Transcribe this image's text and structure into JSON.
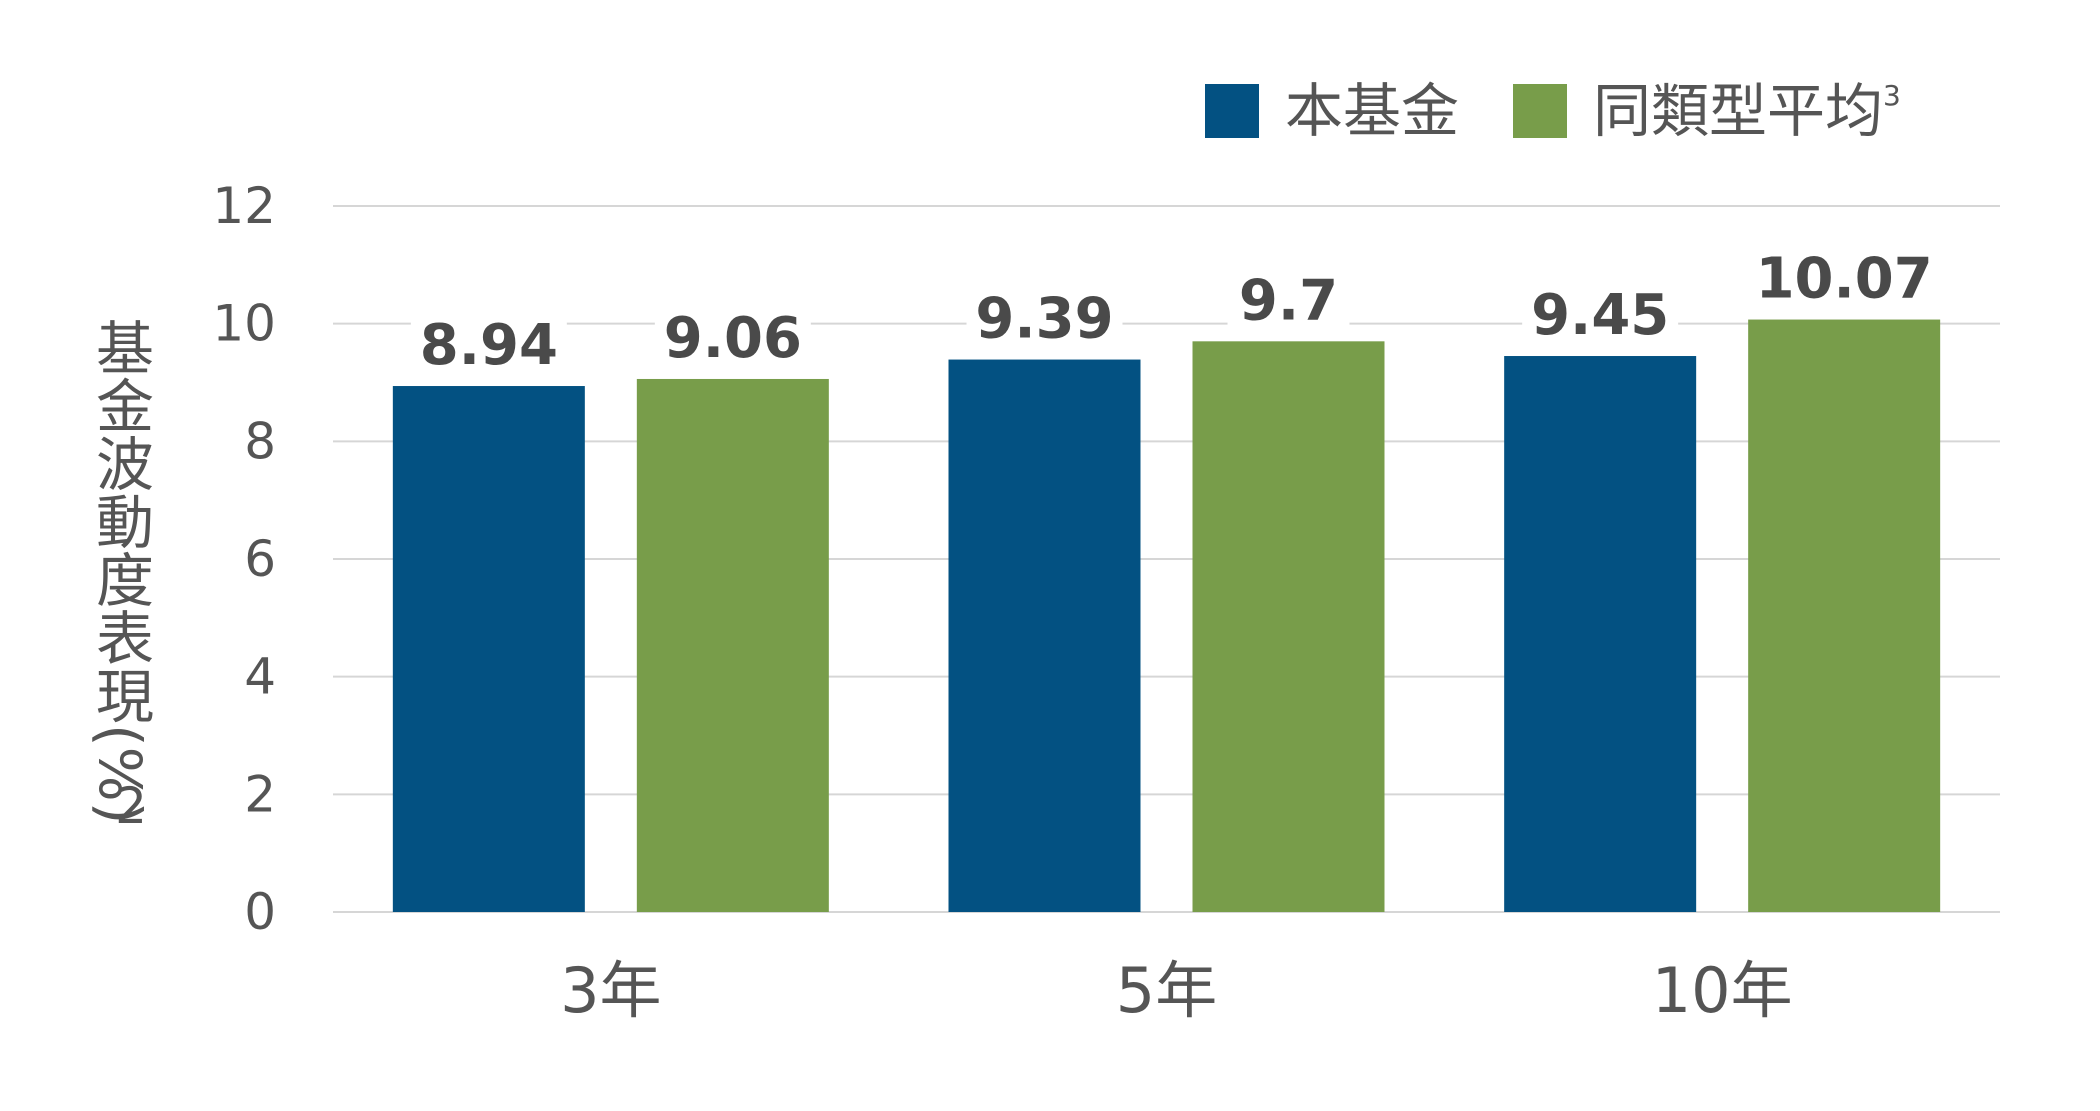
{
  "chart_data": {
    "type": "bar",
    "categories": [
      "3年",
      "5年",
      "10年"
    ],
    "series": [
      {
        "name": "本基金",
        "values": [
          8.94,
          9.39,
          9.45
        ],
        "value_labels": [
          "8.94",
          "9.39",
          "9.45"
        ],
        "color": "#035182"
      },
      {
        "name": "同類型平均",
        "values": [
          9.06,
          9.7,
          10.07
        ],
        "value_labels": [
          "9.06",
          "9.7",
          "10.07"
        ],
        "color": "#789d4a"
      }
    ],
    "legend": {
      "items": [
        {
          "label": "本基金",
          "superscript": ""
        },
        {
          "label": "同類型平均",
          "superscript": "3"
        }
      ],
      "placement": "top-right"
    },
    "ylabel": "基金波動度表現(%)",
    "ylabel_superscript": "2",
    "xlabel": "",
    "ylim": [
      0,
      12
    ],
    "yticks": [
      0,
      2,
      4,
      6,
      8,
      10,
      12
    ],
    "ytick_labels": [
      "0",
      "2",
      "4",
      "6",
      "8",
      "10",
      "12"
    ],
    "grid": true,
    "gridline_color": "#d6d6d6"
  }
}
